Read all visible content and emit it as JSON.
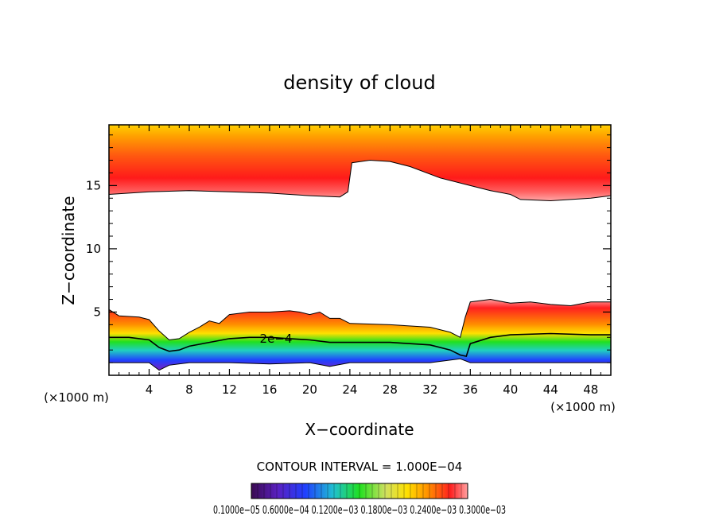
{
  "chart_data": {
    "type": "heatmap",
    "title": "density of cloud",
    "xlabel": "X−coordinate",
    "ylabel": "Z−coordinate",
    "x_unit_left": "(×1000 m)",
    "x_unit_right": "(×1000 m)",
    "xlim": [
      0,
      50
    ],
    "ylim": [
      0,
      19.8
    ],
    "x_ticks": [
      "4",
      "8",
      "12",
      "16",
      "20",
      "24",
      "28",
      "32",
      "36",
      "40",
      "44",
      "48"
    ],
    "x_tick_values": [
      4,
      8,
      12,
      16,
      20,
      24,
      28,
      32,
      36,
      40,
      44,
      48
    ],
    "y_ticks": [
      "5",
      "10",
      "15"
    ],
    "y_tick_values": [
      5,
      10,
      15
    ],
    "contour_label": "2e−4",
    "contour_interval_text": "CONTOUR INTERVAL = 1.000E−04",
    "colorbar_labels_text": "0.1000e−05 0.6000e−04 0.1200e−03 0.1800e−03 0.2400e−03 0.3000e−03",
    "colorbar_range": [
      1e-06,
      0.0003
    ],
    "upper_layer": {
      "description_free": true,
      "base_z": [
        [
          0,
          14.3
        ],
        [
          4,
          14.5
        ],
        [
          8,
          14.6
        ],
        [
          12,
          14.5
        ],
        [
          16,
          14.4
        ],
        [
          20,
          14.2
        ],
        [
          23,
          14.1
        ],
        [
          23.8,
          14.5
        ],
        [
          24.2,
          16.8
        ],
        [
          26,
          17.0
        ],
        [
          28,
          16.9
        ],
        [
          30,
          16.5
        ],
        [
          33,
          15.6
        ],
        [
          36,
          15.0
        ],
        [
          38,
          14.6
        ],
        [
          40,
          14.3
        ],
        [
          41,
          13.9
        ],
        [
          44,
          13.8
        ],
        [
          48,
          14.0
        ],
        [
          50,
          14.2
        ]
      ],
      "top_z": 19.8
    },
    "lower_layer": {
      "top_z": [
        [
          0,
          5.2
        ],
        [
          1,
          4.7
        ],
        [
          3,
          4.6
        ],
        [
          4,
          4.4
        ],
        [
          5,
          3.5
        ],
        [
          6,
          2.8
        ],
        [
          7,
          2.9
        ],
        [
          8,
          3.4
        ],
        [
          9,
          3.8
        ],
        [
          10,
          4.3
        ],
        [
          11,
          4.1
        ],
        [
          12,
          4.8
        ],
        [
          14,
          5.0
        ],
        [
          16,
          5.0
        ],
        [
          18,
          5.1
        ],
        [
          19,
          5.0
        ],
        [
          20,
          4.8
        ],
        [
          21,
          5.0
        ],
        [
          22,
          4.5
        ],
        [
          23,
          4.5
        ],
        [
          24,
          4.1
        ],
        [
          28,
          4.0
        ],
        [
          32,
          3.8
        ],
        [
          34,
          3.4
        ],
        [
          35,
          3.0
        ],
        [
          35.5,
          4.6
        ],
        [
          36,
          5.8
        ],
        [
          38,
          6.0
        ],
        [
          40,
          5.7
        ],
        [
          42,
          5.8
        ],
        [
          44,
          5.6
        ],
        [
          46,
          5.5
        ],
        [
          48,
          5.8
        ],
        [
          50,
          5.8
        ]
      ],
      "contour_2e4_z": [
        [
          0,
          3.0
        ],
        [
          2,
          3.0
        ],
        [
          4,
          2.8
        ],
        [
          5,
          2.2
        ],
        [
          6,
          1.9
        ],
        [
          7,
          2.0
        ],
        [
          8,
          2.3
        ],
        [
          10,
          2.6
        ],
        [
          12,
          2.9
        ],
        [
          14,
          3.0
        ],
        [
          16,
          3.0
        ],
        [
          18,
          2.9
        ],
        [
          20,
          2.8
        ],
        [
          22,
          2.6
        ],
        [
          24,
          2.6
        ],
        [
          28,
          2.6
        ],
        [
          32,
          2.4
        ],
        [
          34,
          2.0
        ],
        [
          35,
          1.6
        ],
        [
          35.6,
          1.5
        ],
        [
          36,
          2.5
        ],
        [
          38,
          3.0
        ],
        [
          40,
          3.2
        ],
        [
          44,
          3.3
        ],
        [
          48,
          3.2
        ],
        [
          50,
          3.2
        ]
      ],
      "bottom_z": [
        [
          0,
          1.0
        ],
        [
          4,
          1.0
        ],
        [
          5,
          0.4
        ],
        [
          6,
          0.8
        ],
        [
          8,
          1.0
        ],
        [
          12,
          1.0
        ],
        [
          16,
          0.9
        ],
        [
          20,
          1.0
        ],
        [
          22,
          0.7
        ],
        [
          24,
          1.0
        ],
        [
          28,
          1.0
        ],
        [
          32,
          1.0
        ],
        [
          35,
          1.3
        ],
        [
          36,
          1.0
        ],
        [
          40,
          1.0
        ],
        [
          44,
          1.0
        ],
        [
          48,
          1.0
        ],
        [
          50,
          1.0
        ]
      ]
    },
    "grid": false,
    "colors": {
      "white": "#ffffff",
      "pink": "#ffa0a0",
      "red": "#ff1a1a",
      "orange": "#ff8c00",
      "yellow": "#ffe000",
      "green": "#20e020",
      "cyan": "#20d0d0",
      "blue": "#2040ff",
      "purple": "#7a20c0"
    }
  }
}
